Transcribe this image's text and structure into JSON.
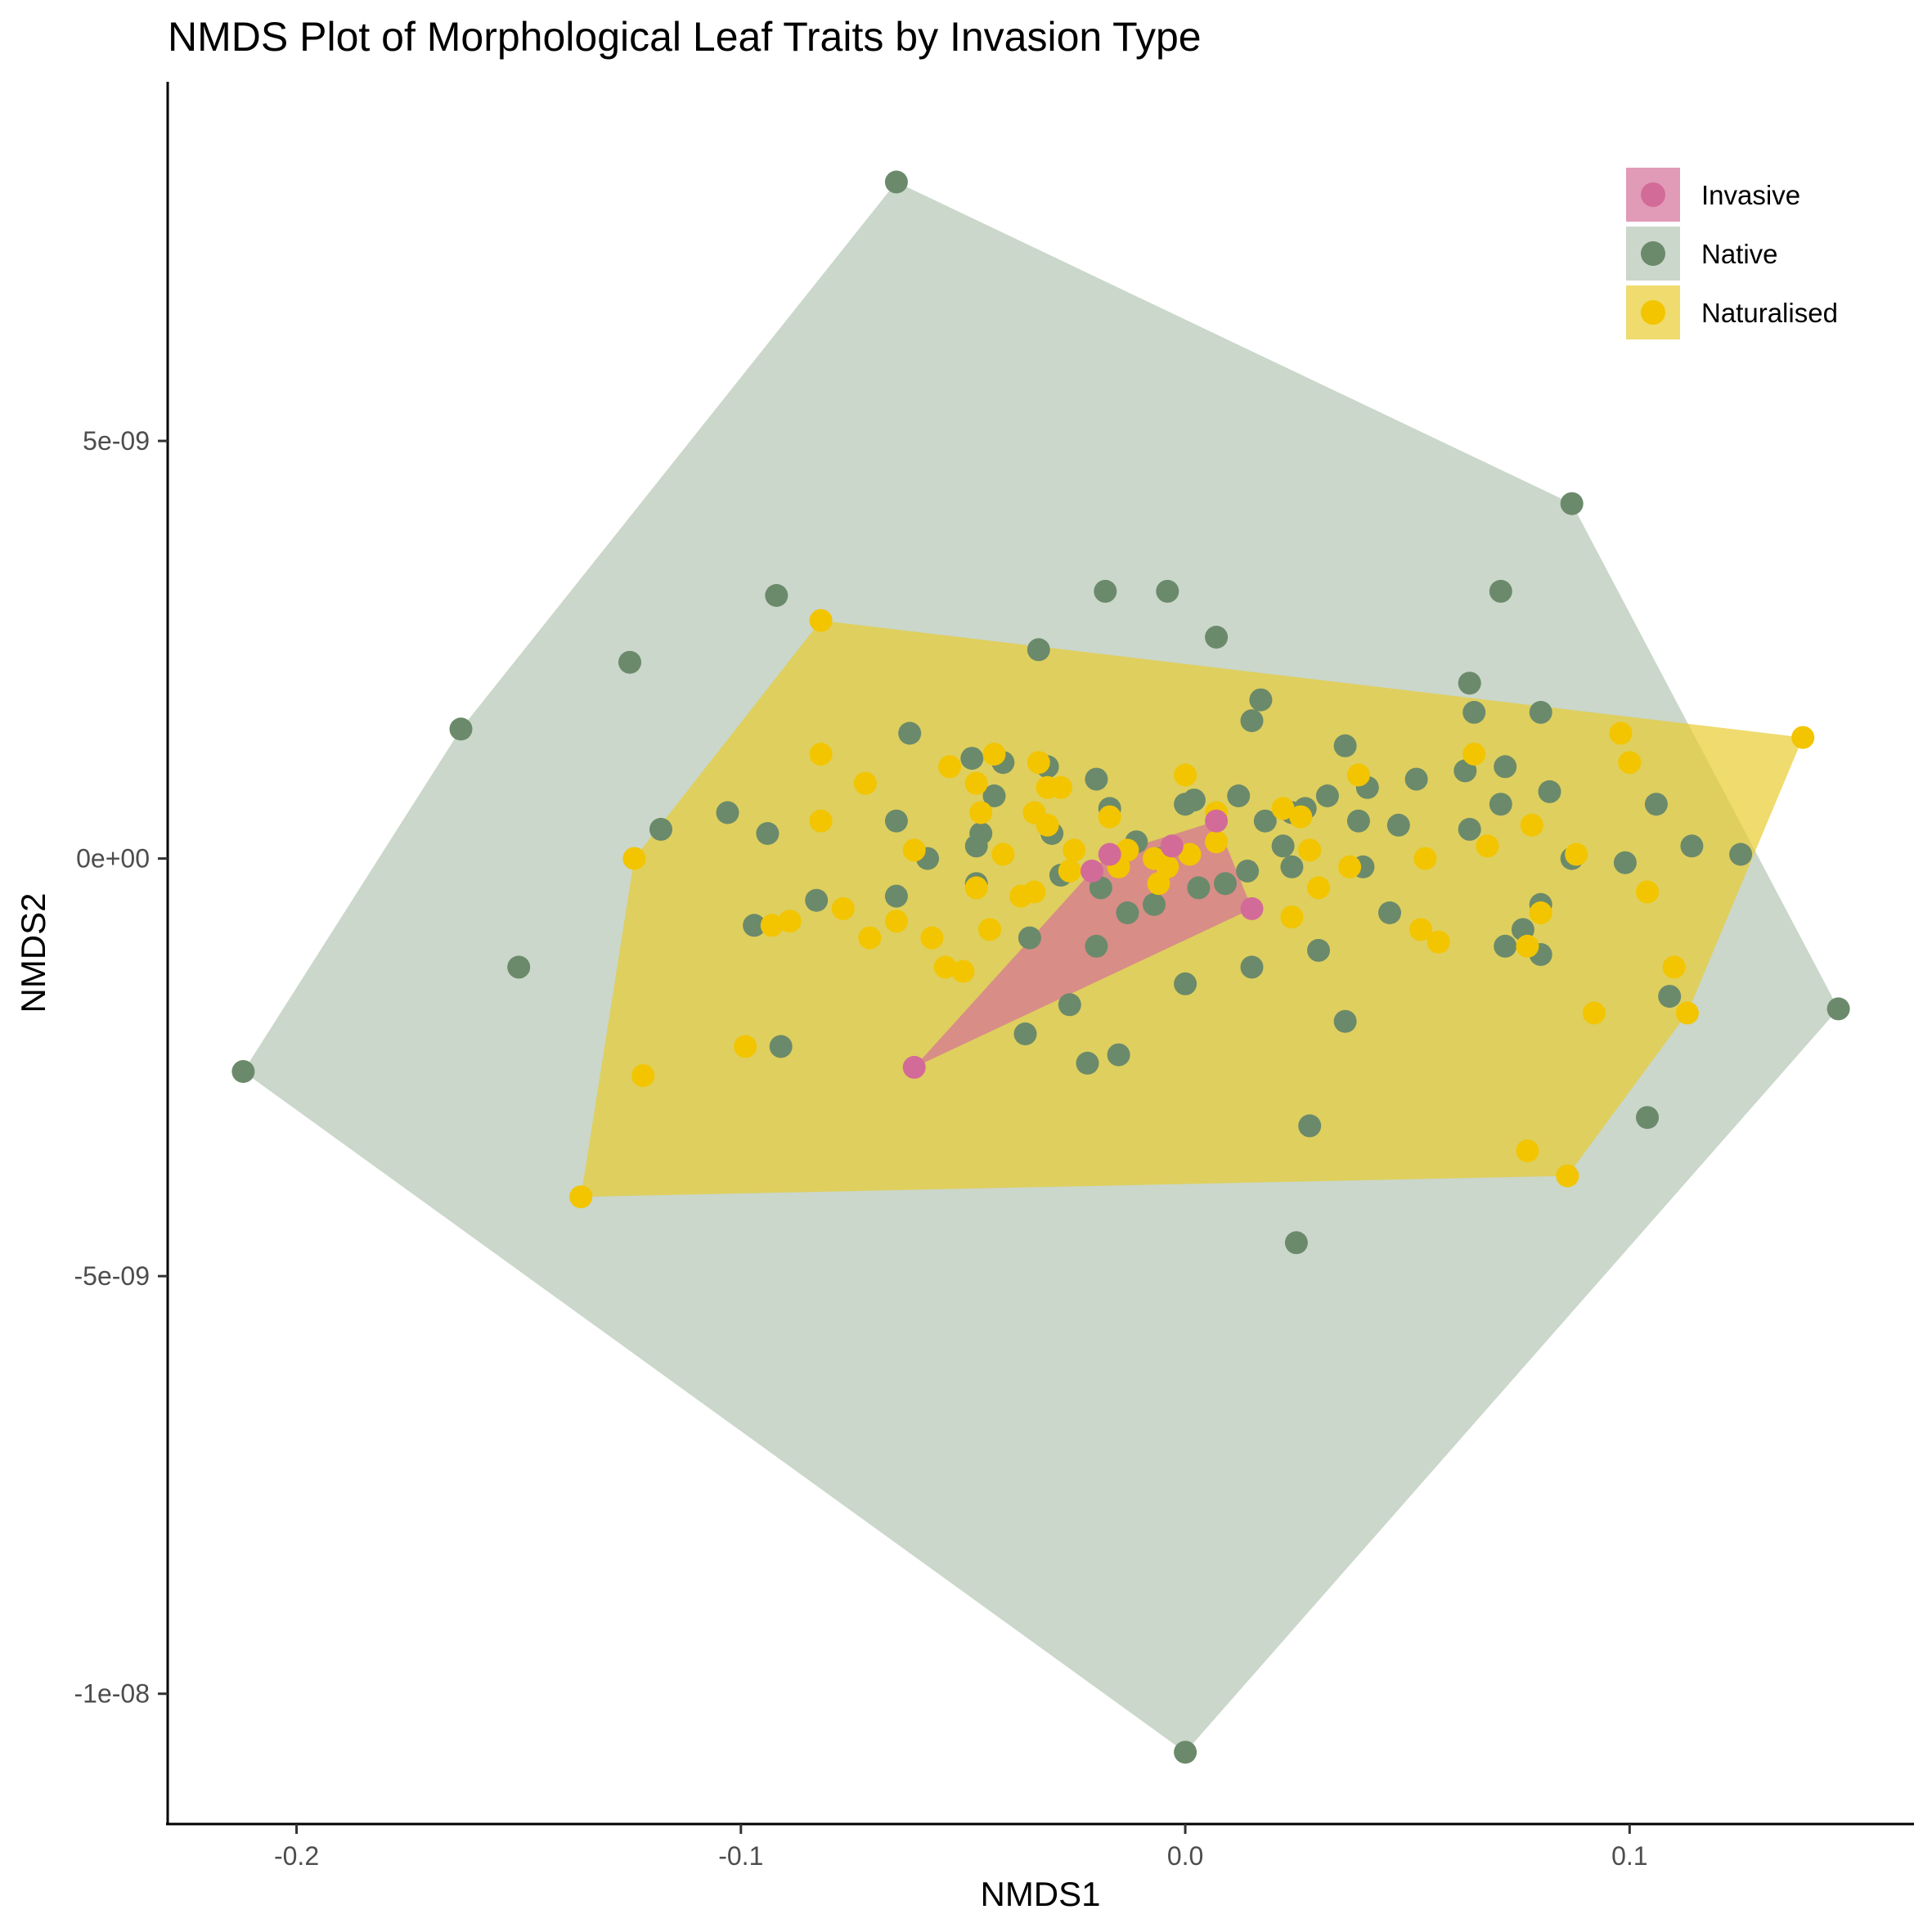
{
  "chart_data": {
    "type": "scatter",
    "title": "NMDS Plot of Morphological Leaf Traits by Invasion Type",
    "xlabel": "NMDS1",
    "ylabel": "NMDS2",
    "xlim": [
      -0.229,
      0.164
    ],
    "ylim": [
      -1.156e-08,
      9.3e-09
    ],
    "x_ticks": [
      {
        "value": -0.2,
        "label": "-0.2"
      },
      {
        "value": -0.1,
        "label": "-0.1"
      },
      {
        "value": 0.0,
        "label": "0.0"
      },
      {
        "value": 0.1,
        "label": "0.1"
      }
    ],
    "y_ticks": [
      {
        "value": 5e-09,
        "label": "5e-09"
      },
      {
        "value": 0,
        "label": "0e+00"
      },
      {
        "value": -5e-09,
        "label": "-5e-09"
      },
      {
        "value": -1e-08,
        "label": "-1e-08"
      }
    ],
    "grid": false,
    "legend_position": "top-right",
    "hulls": true,
    "series": [
      {
        "name": "Native",
        "color": "#6b8a6b",
        "fill": "#b3c6b3",
        "points": [
          [
            -0.065,
            8.1e-09
          ],
          [
            0.087,
            4.25e-09
          ],
          [
            0.147,
            -1.8e-09
          ],
          [
            0.0,
            -1.07e-08
          ],
          [
            -0.212,
            -2.55e-09
          ],
          [
            -0.163,
            1.55e-09
          ],
          [
            -0.092,
            3.15e-09
          ],
          [
            -0.125,
            2.35e-09
          ],
          [
            -0.15,
            -1.3e-09
          ],
          [
            -0.018,
            3.2e-09
          ],
          [
            -0.004,
            3.2e-09
          ],
          [
            0.007,
            2.65e-09
          ],
          [
            -0.033,
            2.5e-09
          ],
          [
            0.071,
            3.2e-09
          ],
          [
            0.064,
            2.1e-09
          ],
          [
            0.017,
            1.9e-09
          ],
          [
            0.015,
            1.65e-09
          ],
          [
            0.065,
            1.75e-09
          ],
          [
            0.08,
            1.75e-09
          ],
          [
            0.036,
            1.35e-09
          ],
          [
            -0.062,
            1.5e-09
          ],
          [
            -0.048,
            1.2e-09
          ],
          [
            -0.041,
            1.15e-09
          ],
          [
            -0.031,
            1.1e-09
          ],
          [
            -0.02,
            9.5e-10
          ],
          [
            0.052,
            9.5e-10
          ],
          [
            0.063,
            1.05e-09
          ],
          [
            0.072,
            1.1e-09
          ],
          [
            0.082,
            8e-10
          ],
          [
            0.106,
            6.5e-10
          ],
          [
            -0.103,
            5.5e-10
          ],
          [
            -0.118,
            3.5e-10
          ],
          [
            -0.094,
            3e-10
          ],
          [
            -0.065,
            4.5e-10
          ],
          [
            -0.043,
            7.5e-10
          ],
          [
            -0.03,
            3e-10
          ],
          [
            0.0,
            6.5e-10
          ],
          [
            0.012,
            7.5e-10
          ],
          [
            0.024,
            5.5e-10
          ],
          [
            0.032,
            7.5e-10
          ],
          [
            0.041,
            8.5e-10
          ],
          [
            0.048,
            4e-10
          ],
          [
            0.064,
            3.5e-10
          ],
          [
            0.071,
            6.5e-10
          ],
          [
            0.099,
            -5e-11
          ],
          [
            0.114,
            1.5e-10
          ],
          [
            0.125,
            5e-11
          ],
          [
            0.087,
            0.0
          ],
          [
            0.08,
            -5.5e-10
          ],
          [
            0.076,
            -8.5e-10
          ],
          [
            0.08,
            -1.15e-09
          ],
          [
            0.072,
            -1.05e-09
          ],
          [
            0.109,
            -1.65e-09
          ],
          [
            0.104,
            -3.1e-09
          ],
          [
            0.036,
            -1.95e-09
          ],
          [
            0.028,
            -3.2e-09
          ],
          [
            0.025,
            -4.6e-09
          ],
          [
            0.015,
            -1.3e-09
          ],
          [
            0.0,
            -1.5e-09
          ],
          [
            -0.026,
            -1.75e-09
          ],
          [
            -0.036,
            -2.1e-09
          ],
          [
            -0.015,
            -2.35e-09
          ],
          [
            -0.022,
            -2.45e-09
          ],
          [
            -0.091,
            -2.25e-09
          ],
          [
            -0.097,
            -8e-10
          ],
          [
            -0.083,
            -5e-10
          ],
          [
            -0.065,
            -4.5e-10
          ],
          [
            -0.058,
            0.0
          ],
          [
            -0.047,
            1.5e-10
          ],
          [
            -0.046,
            3e-10
          ],
          [
            -0.035,
            -9.5e-10
          ],
          [
            -0.02,
            -1.05e-09
          ],
          [
            -0.013,
            -6.5e-10
          ],
          [
            -0.007,
            -5.5e-10
          ],
          [
            0.003,
            -3.5e-10
          ],
          [
            0.014,
            -1.5e-10
          ],
          [
            0.024,
            -1e-10
          ],
          [
            0.03,
            -1.1e-09
          ],
          [
            0.04,
            -1e-10
          ],
          [
            0.046,
            -6.5e-10
          ],
          [
            -0.017,
            6e-10
          ],
          [
            -0.011,
            2e-10
          ],
          [
            0.002,
            7e-10
          ],
          [
            0.018,
            4.5e-10
          ],
          [
            -0.028,
            -2e-10
          ],
          [
            0.009,
            -3e-10
          ],
          [
            -0.047,
            -3e-10
          ],
          [
            -0.019,
            -3.5e-10
          ],
          [
            0.039,
            4.5e-10
          ],
          [
            0.022,
            1.5e-10
          ],
          [
            -0.006,
            0.0
          ],
          [
            0.027,
            6e-10
          ]
        ]
      },
      {
        "name": "Naturalised",
        "color": "#f2c500",
        "fill": "#e8cc30",
        "points": [
          [
            -0.082,
            2.85e-09
          ],
          [
            0.139,
            1.45e-09
          ],
          [
            0.086,
            -3.8e-09
          ],
          [
            -0.136,
            -4.05e-09
          ],
          [
            -0.124,
            0.0
          ],
          [
            -0.122,
            -2.6e-09
          ],
          [
            -0.099,
            -2.25e-09
          ],
          [
            -0.082,
            1.25e-09
          ],
          [
            -0.082,
            4.5e-10
          ],
          [
            -0.072,
            9e-10
          ],
          [
            -0.077,
            -6e-10
          ],
          [
            -0.071,
            -9.5e-10
          ],
          [
            -0.065,
            -7.5e-10
          ],
          [
            -0.061,
            1e-10
          ],
          [
            -0.057,
            -9.5e-10
          ],
          [
            -0.054,
            -1.3e-09
          ],
          [
            -0.05,
            -1.35e-09
          ],
          [
            -0.053,
            1.1e-09
          ],
          [
            -0.047,
            9e-10
          ],
          [
            -0.046,
            5.5e-10
          ],
          [
            -0.041,
            5e-11
          ],
          [
            -0.043,
            1.25e-09
          ],
          [
            -0.033,
            1.15e-09
          ],
          [
            -0.031,
            8.5e-10
          ],
          [
            -0.028,
            8.5e-10
          ],
          [
            -0.034,
            5.5e-10
          ],
          [
            -0.031,
            4e-10
          ],
          [
            -0.025,
            1e-10
          ],
          [
            -0.017,
            5e-10
          ],
          [
            -0.013,
            1e-10
          ],
          [
            -0.007,
            0.0
          ],
          [
            -0.006,
            -3e-10
          ],
          [
            -0.004,
            -1e-10
          ],
          [
            0.001,
            5e-11
          ],
          [
            0.007,
            5.5e-10
          ],
          [
            0.007,
            2e-10
          ],
          [
            0.0,
            1e-09
          ],
          [
            0.022,
            6e-10
          ],
          [
            0.026,
            5e-10
          ],
          [
            0.028,
            1e-10
          ],
          [
            0.03,
            -3.5e-10
          ],
          [
            0.024,
            -7e-10
          ],
          [
            0.037,
            -1e-10
          ],
          [
            0.039,
            1e-09
          ],
          [
            0.054,
            0.0
          ],
          [
            0.053,
            -8.5e-10
          ],
          [
            0.057,
            -1e-09
          ],
          [
            0.065,
            1.25e-09
          ],
          [
            0.068,
            1.5e-10
          ],
          [
            0.078,
            4e-10
          ],
          [
            0.08,
            -6.5e-10
          ],
          [
            0.077,
            -1.05e-09
          ],
          [
            0.088,
            5e-11
          ],
          [
            0.098,
            1.5e-09
          ],
          [
            0.1,
            1.15e-09
          ],
          [
            0.104,
            -4e-10
          ],
          [
            0.11,
            -1.3e-09
          ],
          [
            0.113,
            -1.85e-09
          ],
          [
            0.092,
            -1.85e-09
          ],
          [
            0.077,
            -3.5e-09
          ],
          [
            -0.093,
            -8e-10
          ],
          [
            -0.089,
            -7.5e-10
          ],
          [
            -0.047,
            -3.5e-10
          ],
          [
            -0.044,
            -8.5e-10
          ],
          [
            -0.037,
            -4.5e-10
          ],
          [
            -0.034,
            -4e-10
          ],
          [
            -0.026,
            -1.5e-10
          ],
          [
            -0.015,
            -1e-10
          ]
        ]
      },
      {
        "name": "Invasive",
        "color": "#d36b98",
        "fill": "#d47098",
        "points": [
          [
            0.007,
            4.5e-10
          ],
          [
            -0.017,
            5e-11
          ],
          [
            -0.021,
            -1.5e-10
          ],
          [
            -0.003,
            1.5e-10
          ],
          [
            0.015,
            -6e-10
          ],
          [
            -0.061,
            -2.5e-09
          ]
        ]
      }
    ]
  }
}
